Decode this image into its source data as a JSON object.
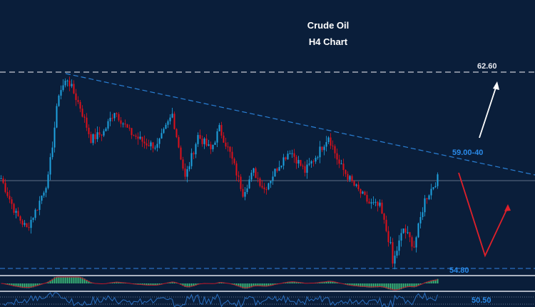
{
  "chart_data": {
    "type": "candlestick",
    "title": "Crude Oil",
    "subtitle": "H4 Chart",
    "price_range": [
      54.5,
      63.5
    ],
    "colors": {
      "background": "#0a1e3a",
      "up": "#1fa3e0",
      "down": "#e0101a",
      "trendline": "#2a7fd4",
      "forecast_down": "#e0202a",
      "forecast_up": "#ffffff",
      "oscillator_hist": "#3cb878",
      "oscillator_signal": "#c0182a",
      "rsi": "#2a6fc0"
    },
    "close_path": {
      "candle_index": [
        0,
        7,
        12,
        17,
        22,
        27,
        31,
        37,
        42,
        48,
        53,
        60,
        67,
        73,
        80,
        86,
        92,
        98,
        102,
        107,
        113,
        118,
        123,
        130,
        135,
        142,
        148,
        153,
        158,
        165,
        172,
        177,
        182,
        183,
        188,
        193,
        198,
        204
      ],
      "price": [
        58.36,
        56.93,
        56.36,
        57.22,
        58.36,
        61.77,
        62.34,
        61.2,
        59.92,
        60.21,
        61.06,
        60.21,
        59.78,
        59.64,
        60.92,
        58.36,
        60.06,
        59.49,
        60.35,
        59.35,
        57.79,
        58.64,
        57.93,
        58.93,
        59.49,
        58.64,
        59.35,
        60.06,
        58.93,
        58.07,
        57.36,
        57.22,
        55.65,
        54.94,
        56.36,
        55.65,
        57.5,
        58.36
      ]
    },
    "levels": [
      {
        "label": "62.60",
        "price": 62.6,
        "style": "dashed",
        "color": "#c8ccd4"
      },
      {
        "label": "59.00-40",
        "price": 59.2,
        "style": "descending-trendline",
        "color": "#2a8ae8"
      },
      {
        "label": "54.80",
        "price": 54.8,
        "style": "dashed",
        "color": "#2a8ae8"
      }
    ],
    "oscillator_label": "50.50"
  }
}
